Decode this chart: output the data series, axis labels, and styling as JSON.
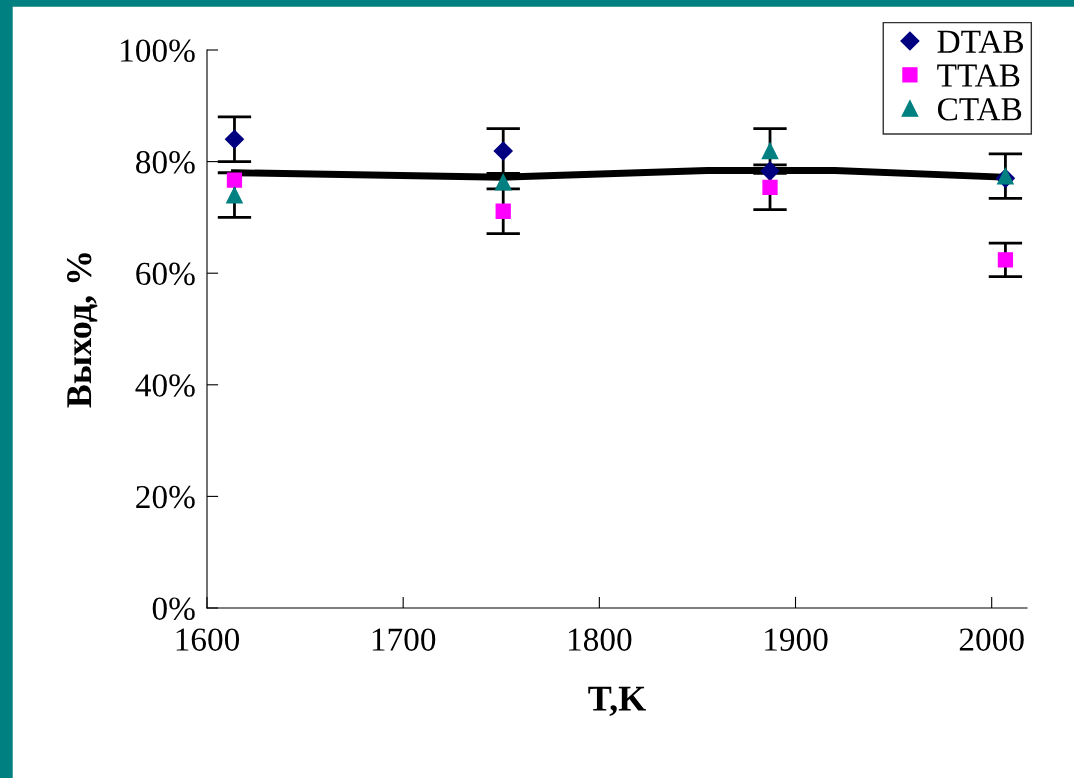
{
  "chart_data": {
    "type": "scatter",
    "xlabel": "T,K",
    "ylabel": "Выход, %",
    "xlim": [
      1600,
      2018
    ],
    "ylim": [
      0,
      100
    ],
    "xticks": [
      1600,
      1700,
      1800,
      1900,
      2000
    ],
    "yticks": [
      {
        "value": 0,
        "label": "0%"
      },
      {
        "value": 20,
        "label": "20%"
      },
      {
        "value": 40,
        "label": "40%"
      },
      {
        "value": 60,
        "label": "60%"
      },
      {
        "value": 80,
        "label": "80%"
      },
      {
        "value": 100,
        "label": "100%"
      }
    ],
    "grid": false,
    "legend": "top right",
    "series": [
      {
        "name": "DTAB",
        "color": "#000080",
        "marker": "diamond",
        "x": [
          1614,
          1751,
          1887,
          2007
        ],
        "values": [
          84.0,
          81.9,
          78.3,
          77.0
        ],
        "errors": [
          4,
          4,
          null,
          null
        ]
      },
      {
        "name": "TTAB",
        "color": "#ff00ff",
        "marker": "square",
        "x": [
          1614,
          1751,
          1887,
          2007
        ],
        "values": [
          76.7,
          71.1,
          75.4,
          62.4
        ],
        "errors": [
          null,
          4,
          4,
          3
        ]
      },
      {
        "name": "CTAB",
        "color": "#008080",
        "marker": "triangle",
        "x": [
          1614,
          1751,
          1887,
          2007
        ],
        "values": [
          74.0,
          76.3,
          81.9,
          77.4
        ],
        "errors": [
          4,
          null,
          4,
          4
        ]
      },
      {
        "type": "line",
        "color": "#000000",
        "marker": "none",
        "x": [
          1614,
          1751,
          1855,
          1920,
          2007
        ],
        "values": [
          78.0,
          77.2,
          78.4,
          78.4,
          77.2
        ]
      }
    ]
  }
}
